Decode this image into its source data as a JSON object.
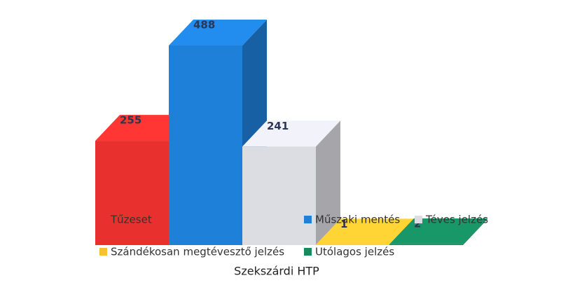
{
  "chart_data": {
    "type": "bar3d",
    "x_label": "Szekszárdi HTP",
    "categories": [
      "Tűzeset",
      "Műszaki mentés",
      "Téves jelzés",
      "Szándékosan megtévesztő jelzés",
      "Utólagos jelzés"
    ],
    "values": [
      255,
      488,
      241,
      1,
      2
    ],
    "colors": [
      "#e8312e",
      "#1f80d9",
      "#dcdce3",
      "#f5c231",
      "#168a5f"
    ],
    "legend": "bottom"
  }
}
